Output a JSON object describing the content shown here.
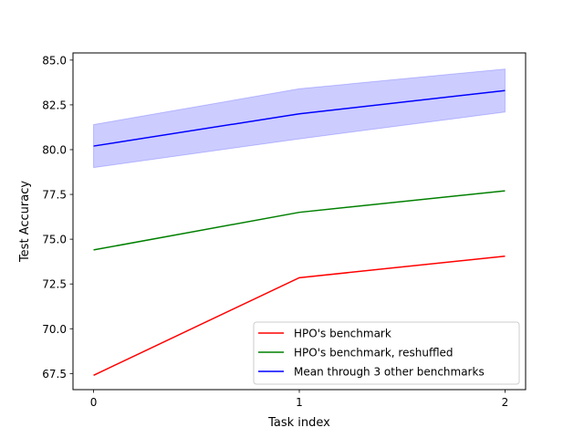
{
  "chart_data": {
    "type": "line",
    "xlabel": "Task index",
    "ylabel": "Test Accuracy",
    "x": [
      0,
      1,
      2
    ],
    "x_ticks": [
      "0",
      "1",
      "2"
    ],
    "xlim": [
      -0.1,
      2.1
    ],
    "ylim": [
      66.6,
      85.4
    ],
    "y_ticks": [
      "67.5",
      "70.0",
      "72.5",
      "75.0",
      "77.5",
      "80.0",
      "82.5",
      "85.0"
    ],
    "grid": false,
    "legend_position": "lower-right",
    "series": [
      {
        "name": "HPO's benchmark",
        "color": "#ff0000",
        "values": [
          67.4,
          72.85,
          74.05
        ]
      },
      {
        "name": "HPO's benchmark, reshuffled",
        "color": "#008000",
        "values": [
          74.4,
          76.5,
          77.7
        ]
      },
      {
        "name": "Mean through 3 other benchmarks",
        "color": "#0000ff",
        "values": [
          80.2,
          82.0,
          83.3
        ],
        "band_upper": [
          81.4,
          83.4,
          84.5
        ],
        "band_lower": [
          79.0,
          80.6,
          82.1
        ],
        "band_color": "#0000ff"
      }
    ]
  }
}
